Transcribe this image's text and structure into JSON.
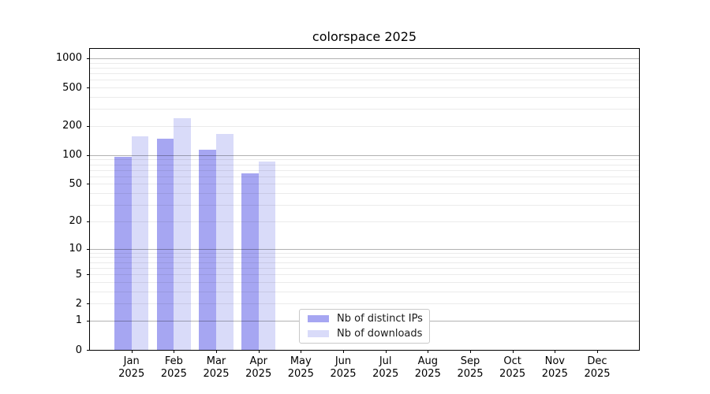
{
  "title": "colorspace 2025",
  "chart_data": {
    "type": "bar",
    "title": "colorspace 2025",
    "yscale": "log10(1+x)",
    "categories": [
      "Jan",
      "Feb",
      "Mar",
      "Apr",
      "May",
      "Jun",
      "Jul",
      "Aug",
      "Sep",
      "Oct",
      "Nov",
      "Dec"
    ],
    "year_label": "2025",
    "series": [
      {
        "name": "Nb of distinct IPs",
        "color": "#a6a6f2",
        "values": [
          96,
          147,
          114,
          65,
          null,
          null,
          null,
          null,
          null,
          null,
          null,
          null
        ]
      },
      {
        "name": "Nb of downloads",
        "color": "#d9dbf9",
        "values": [
          158,
          240,
          167,
          85,
          null,
          null,
          null,
          null,
          null,
          null,
          null,
          null
        ]
      }
    ],
    "y_ticks": [
      0,
      1,
      2,
      5,
      10,
      20,
      50,
      100,
      200,
      500,
      1000
    ],
    "ylim": [
      0,
      1250
    ],
    "grid": {
      "major": [
        1,
        10,
        100,
        1000
      ],
      "minor_per_decade": [
        2,
        3,
        4,
        5,
        6,
        7,
        8,
        9
      ],
      "on": true
    },
    "legend": {
      "position": "inside-bottom-center",
      "border": true
    }
  },
  "colors": {
    "major_grid": "rgba(0,0,0,0.30)",
    "minor_grid": "rgba(0,0,0,0.08)",
    "spine": "#000000",
    "background": "#ffffff",
    "text": "#000000"
  }
}
